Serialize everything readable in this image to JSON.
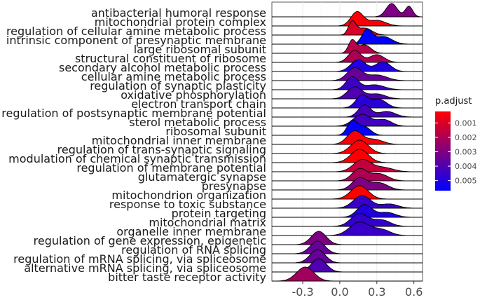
{
  "chart_data": {
    "type": "ridgeline",
    "xlim": [
      -0.55,
      0.67
    ],
    "x_ticks": [
      -0.3,
      0.0,
      0.3,
      0.6
    ],
    "x_tick_labels": [
      "-0.3",
      "0.0",
      "0.3",
      "0.6"
    ],
    "grid": true,
    "legend": {
      "title": "p.adjust",
      "position": "right",
      "ticks": [
        0.001,
        0.002,
        0.003,
        0.004,
        0.005
      ],
      "tick_labels": [
        "0.001",
        "0.002",
        "0.003",
        "0.004",
        "0.005"
      ],
      "range": [
        0.0002,
        0.0057
      ],
      "low_color": "#ff0000",
      "high_color": "#0000ff"
    },
    "ridges": [
      {
        "term": "antibacterial humoral response",
        "p_adjust": 0.003,
        "peaks": [
          {
            "x": 0.42,
            "h": 0.95,
            "sd": 0.045
          },
          {
            "x": 0.56,
            "h": 0.75,
            "sd": 0.03
          }
        ]
      },
      {
        "term": "mitochondrial protein complex",
        "p_adjust": 0.0003,
        "peaks": [
          {
            "x": 0.14,
            "h": 1.0,
            "sd": 0.05
          },
          {
            "x": 0.3,
            "h": 0.4,
            "sd": 0.07
          }
        ]
      },
      {
        "term": "regulation of cellular amine metabolic process",
        "p_adjust": 0.001,
        "peaks": [
          {
            "x": 0.1,
            "h": 0.9,
            "sd": 0.03
          },
          {
            "x": 0.2,
            "h": 0.5,
            "sd": 0.06
          }
        ]
      },
      {
        "term": "intrinsic component of presynaptic membrane",
        "p_adjust": 0.0057,
        "peaks": [
          {
            "x": 0.22,
            "h": 1.0,
            "sd": 0.04
          },
          {
            "x": 0.35,
            "h": 0.55,
            "sd": 0.07
          }
        ]
      },
      {
        "term": "large ribosomal subunit",
        "p_adjust": 0.0018,
        "peaks": [
          {
            "x": 0.1,
            "h": 0.9,
            "sd": 0.03
          },
          {
            "x": 0.2,
            "h": 0.6,
            "sd": 0.05
          }
        ]
      },
      {
        "term": "structural constituent of ribosome",
        "p_adjust": 0.002,
        "peaks": [
          {
            "x": 0.12,
            "h": 0.85,
            "sd": 0.05
          },
          {
            "x": 0.3,
            "h": 0.55,
            "sd": 0.06
          }
        ]
      },
      {
        "term": "secondary alcohol metabolic process",
        "p_adjust": 0.005,
        "peaks": [
          {
            "x": 0.15,
            "h": 0.85,
            "sd": 0.06
          },
          {
            "x": 0.35,
            "h": 0.7,
            "sd": 0.06
          }
        ]
      },
      {
        "term": "cellular amine metabolic process",
        "p_adjust": 0.0035,
        "peaks": [
          {
            "x": 0.12,
            "h": 0.9,
            "sd": 0.06
          },
          {
            "x": 0.3,
            "h": 0.4,
            "sd": 0.08
          }
        ]
      },
      {
        "term": "regulation of synaptic plasticity",
        "p_adjust": 0.0044,
        "peaks": [
          {
            "x": 0.1,
            "h": 0.9,
            "sd": 0.05
          },
          {
            "x": 0.28,
            "h": 0.35,
            "sd": 0.08
          }
        ]
      },
      {
        "term": "oxidative phosphorylation",
        "p_adjust": 0.004,
        "peaks": [
          {
            "x": 0.12,
            "h": 0.85,
            "sd": 0.06
          },
          {
            "x": 0.3,
            "h": 0.35,
            "sd": 0.07
          }
        ]
      },
      {
        "term": "electron transport chain",
        "p_adjust": 0.0048,
        "peaks": [
          {
            "x": 0.18,
            "h": 0.9,
            "sd": 0.05
          },
          {
            "x": 0.32,
            "h": 0.6,
            "sd": 0.06
          }
        ]
      },
      {
        "term": "regulation of postsynaptic membrane potential",
        "p_adjust": 0.0042,
        "peaks": [
          {
            "x": 0.2,
            "h": 0.85,
            "sd": 0.05
          },
          {
            "x": 0.38,
            "h": 0.4,
            "sd": 0.07
          }
        ]
      },
      {
        "term": "sterol metabolic process",
        "p_adjust": 0.0043,
        "peaks": [
          {
            "x": 0.18,
            "h": 0.85,
            "sd": 0.07
          },
          {
            "x": 0.36,
            "h": 0.45,
            "sd": 0.06
          }
        ]
      },
      {
        "term": "ribosomal subunit",
        "p_adjust": 0.0056,
        "peaks": [
          {
            "x": 0.1,
            "h": 1.0,
            "sd": 0.04
          },
          {
            "x": 0.2,
            "h": 0.6,
            "sd": 0.05
          }
        ]
      },
      {
        "term": "mitochondrial inner membrane",
        "p_adjust": 0.0004,
        "peaks": [
          {
            "x": 0.12,
            "h": 0.95,
            "sd": 0.06
          },
          {
            "x": 0.28,
            "h": 0.35,
            "sd": 0.07
          }
        ]
      },
      {
        "term": "regulation of trans-synaptic signaling",
        "p_adjust": 0.0003,
        "peaks": [
          {
            "x": 0.16,
            "h": 0.95,
            "sd": 0.07
          }
        ]
      },
      {
        "term": "modulation of chemical synaptic transmission",
        "p_adjust": 0.0003,
        "peaks": [
          {
            "x": 0.16,
            "h": 0.95,
            "sd": 0.07
          }
        ]
      },
      {
        "term": "regulation of membrane potential",
        "p_adjust": 0.0015,
        "peaks": [
          {
            "x": 0.18,
            "h": 0.85,
            "sd": 0.07
          },
          {
            "x": 0.35,
            "h": 0.3,
            "sd": 0.08
          }
        ]
      },
      {
        "term": "glutamatergic synapse",
        "p_adjust": 0.002,
        "peaks": [
          {
            "x": 0.16,
            "h": 0.85,
            "sd": 0.06
          },
          {
            "x": 0.32,
            "h": 0.5,
            "sd": 0.07
          }
        ]
      },
      {
        "term": "presynapse",
        "p_adjust": 0.003,
        "peaks": [
          {
            "x": 0.16,
            "h": 0.85,
            "sd": 0.06
          },
          {
            "x": 0.32,
            "h": 0.5,
            "sd": 0.07
          }
        ]
      },
      {
        "term": "mitochondrion organization",
        "p_adjust": 0.0002,
        "peaks": [
          {
            "x": 0.16,
            "h": 0.95,
            "sd": 0.07
          }
        ]
      },
      {
        "term": "response to toxic substance",
        "p_adjust": 0.0045,
        "peaks": [
          {
            "x": 0.18,
            "h": 0.9,
            "sd": 0.07
          },
          {
            "x": 0.4,
            "h": 0.3,
            "sd": 0.07
          }
        ]
      },
      {
        "term": "protein targeting",
        "p_adjust": 0.005,
        "peaks": [
          {
            "x": 0.2,
            "h": 0.9,
            "sd": 0.06
          },
          {
            "x": 0.38,
            "h": 0.35,
            "sd": 0.07
          }
        ]
      },
      {
        "term": "mitochondrial matrix",
        "p_adjust": 0.0046,
        "peaks": [
          {
            "x": 0.16,
            "h": 0.9,
            "sd": 0.07
          },
          {
            "x": 0.34,
            "h": 0.45,
            "sd": 0.07
          }
        ]
      },
      {
        "term": "organelle inner membrane",
        "p_adjust": 0.0045,
        "peaks": [
          {
            "x": 0.16,
            "h": 0.95,
            "sd": 0.08
          },
          {
            "x": 0.34,
            "h": 0.4,
            "sd": 0.07
          }
        ]
      },
      {
        "term": "regulation of gene expression, epigenetic",
        "p_adjust": 0.003,
        "peaks": [
          {
            "x": -0.17,
            "h": 0.95,
            "sd": 0.06
          }
        ]
      },
      {
        "term": "regulation of RNA splicing",
        "p_adjust": 0.0035,
        "peaks": [
          {
            "x": -0.18,
            "h": 0.9,
            "sd": 0.06
          }
        ]
      },
      {
        "term": "regulation of mRNA splicing, via spliceosome",
        "p_adjust": 0.0035,
        "peaks": [
          {
            "x": -0.18,
            "h": 0.95,
            "sd": 0.06
          }
        ]
      },
      {
        "term": "alternative mRNA splicing, via spliceosome",
        "p_adjust": 0.004,
        "peaks": [
          {
            "x": -0.17,
            "h": 0.95,
            "sd": 0.06
          }
        ]
      },
      {
        "term": "bitter taste receptor activity",
        "p_adjust": 0.0022,
        "peaks": [
          {
            "x": -0.28,
            "h": 1.0,
            "sd": 0.07
          }
        ]
      }
    ]
  }
}
